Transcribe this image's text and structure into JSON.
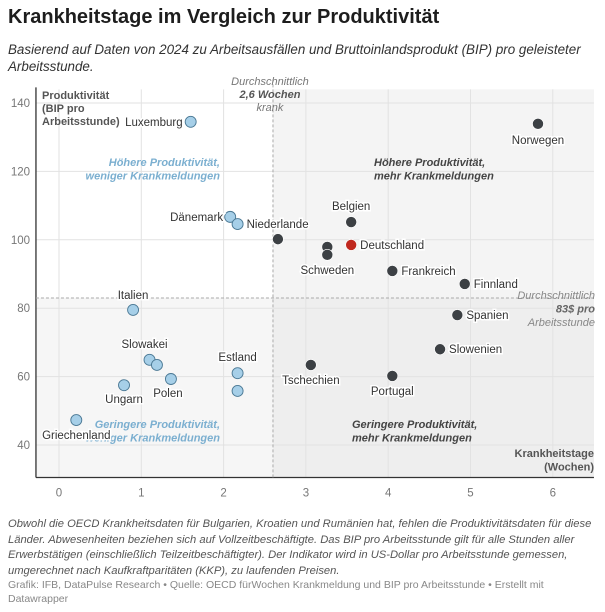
{
  "title": "Krankheitstage im Vergleich zur Produktivität",
  "subtitle": "Basierend auf Daten von 2024 zu Arbeitsausfällen und Bruttoinlandsprodukt (BIP) pro geleisteter Arbeitsstunde.",
  "notes": "Obwohl die OECD Krankheitsdaten für Bulgarien, Kroatien und Rumänien hat, fehlen die Produktivitätsdaten für diese Länder. Abwesenheiten beziehen sich auf Vollzeitbeschäftigte. Das BIP pro Arbeitsstunde gilt für alle Stunden aller Erwerbstätigen (einschließlich Teilzeitbeschäftigter). Der Indikator wird in US-Dollar pro Arbeitsstunde gemessen, umgerechnet nach Kaufkraftparitäten (KKP), zu laufenden Preisen.",
  "credit": "Grafik: IFB, DataPulse Research • Quelle: OECD fürWochen Krankmeldung und BIP pro Arbeitsstunde • Erstellt mit Datawrapper",
  "chart_data": {
    "type": "scatter",
    "xlabel": [
      "Krankheitstage",
      "(Wochen)"
    ],
    "ylabel": [
      "Produktivität",
      "(BIP pro",
      "Arbeitsstunde)"
    ],
    "xlim": [
      -0.28,
      6.5
    ],
    "ylim": [
      30.5,
      144
    ],
    "xticks": [
      0,
      1,
      2,
      3,
      4,
      5,
      6
    ],
    "yticks": [
      40,
      60,
      80,
      100,
      120,
      140
    ],
    "grid": true,
    "colors": {
      "low_sick": "#a6cfe8",
      "high_sick": "#3c4044",
      "highlight": "#c0281e",
      "quadrant_label_blue": "#7bafd0"
    },
    "ref_x": {
      "value": 2.6,
      "label": [
        "Durchschnittlich",
        "2,6 Wochen",
        "krank"
      ]
    },
    "ref_y": {
      "value": 83,
      "label": [
        "Durchschnittlich",
        "83$ pro",
        "Arbeitsstunde"
      ]
    },
    "quadrants": [
      {
        "label": [
          "Höhere Produktivität,",
          "weniger Krankmeldungen"
        ],
        "pos": "top-left"
      },
      {
        "label": [
          "Höhere Produktivität,",
          "mehr Krankmeldungen"
        ],
        "pos": "top-right"
      },
      {
        "label": [
          "Geringere Produktivität,",
          "weniger Krankmeldungen"
        ],
        "pos": "bottom-left"
      },
      {
        "label": [
          "Geringere Produktivität,",
          "mehr Krankmeldungen"
        ],
        "pos": "bottom-right"
      }
    ],
    "points": [
      {
        "label": "Luxemburg",
        "x": 1.6,
        "y": 134.5,
        "group": "low"
      },
      {
        "label": "Dänemark",
        "x": 2.08,
        "y": 106.7,
        "group": "low"
      },
      {
        "label": "Niederlande",
        "x": 2.17,
        "y": 104.6,
        "group": "low"
      },
      {
        "label": "",
        "x": 2.66,
        "y": 100.2,
        "group": "high"
      },
      {
        "label": "Belgien",
        "x": 3.55,
        "y": 105.2,
        "group": "high"
      },
      {
        "label": "",
        "x": 3.26,
        "y": 97.9,
        "group": "high"
      },
      {
        "label": "Schweden",
        "x": 3.26,
        "y": 95.6,
        "group": "high"
      },
      {
        "label": "Deutschland",
        "x": 3.55,
        "y": 98.5,
        "group": "highlight"
      },
      {
        "label": "Frankreich",
        "x": 4.05,
        "y": 90.9,
        "group": "high"
      },
      {
        "label": "Finnland",
        "x": 4.93,
        "y": 87.1,
        "group": "high"
      },
      {
        "label": "Norwegen",
        "x": 5.82,
        "y": 133.9,
        "group": "high"
      },
      {
        "label": "Spanien",
        "x": 4.84,
        "y": 78,
        "group": "high"
      },
      {
        "label": "Slowenien",
        "x": 4.63,
        "y": 68,
        "group": "high"
      },
      {
        "label": "Tschechien",
        "x": 3.06,
        "y": 63.4,
        "group": "high"
      },
      {
        "label": "Portugal",
        "x": 4.05,
        "y": 60.2,
        "group": "high"
      },
      {
        "label": "Italien",
        "x": 0.9,
        "y": 79.5,
        "group": "low"
      },
      {
        "label": "Slowakei",
        "x": 1.1,
        "y": 64.9,
        "group": "low"
      },
      {
        "label": "",
        "x": 1.19,
        "y": 63.4,
        "group": "low"
      },
      {
        "label": "Polen",
        "x": 1.36,
        "y": 59.3,
        "group": "low"
      },
      {
        "label": "Estland",
        "x": 2.17,
        "y": 61,
        "group": "low"
      },
      {
        "label": "",
        "x": 2.17,
        "y": 55.8,
        "group": "low"
      },
      {
        "label": "Ungarn",
        "x": 0.79,
        "y": 57.5,
        "group": "low"
      },
      {
        "label": "Griechenland",
        "x": 0.21,
        "y": 47.3,
        "group": "low"
      }
    ]
  }
}
